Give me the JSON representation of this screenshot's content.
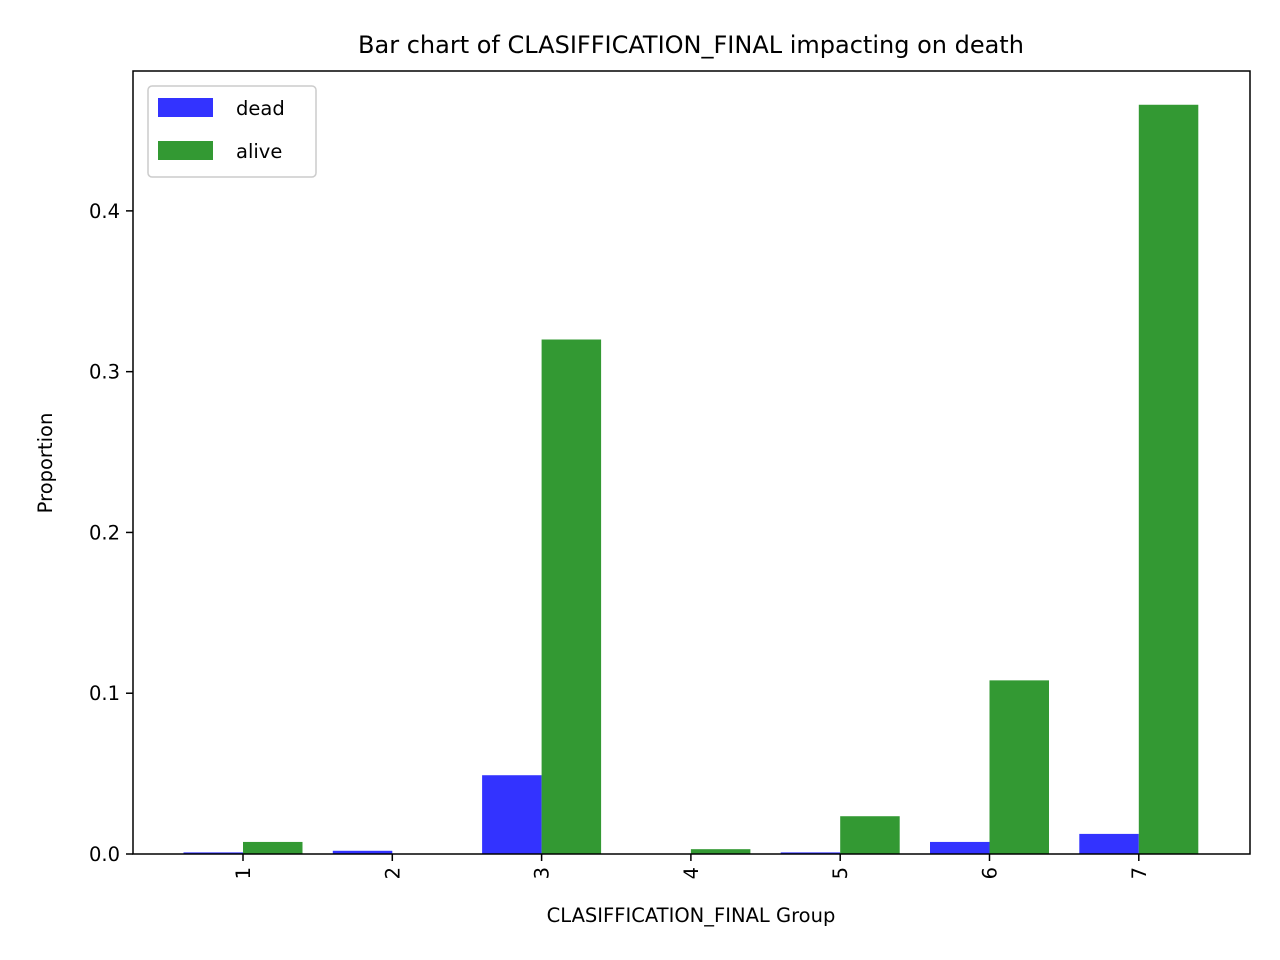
{
  "chart_data": {
    "type": "bar",
    "title": "Bar chart of CLASIFFICATION_FINAL impacting on death",
    "xlabel": "CLASIFFICATION_FINAL Group",
    "ylabel": "Proportion",
    "categories": [
      "1",
      "2",
      "3",
      "4",
      "5",
      "6",
      "7"
    ],
    "series": [
      {
        "name": "dead",
        "color": "#3333ff",
        "values": [
          0.001,
          0.002,
          0.049,
          0.0002,
          0.001,
          0.0075,
          0.0125
        ]
      },
      {
        "name": "alive",
        "color": "#339933",
        "values": [
          0.0075,
          0.0003,
          0.32,
          0.003,
          0.0235,
          0.108,
          0.466
        ]
      }
    ],
    "ylim": [
      0,
      0.487
    ],
    "yticks": [
      "0.0",
      "0.1",
      "0.2",
      "0.3",
      "0.4"
    ],
    "grid": false,
    "legend": "top-left"
  }
}
